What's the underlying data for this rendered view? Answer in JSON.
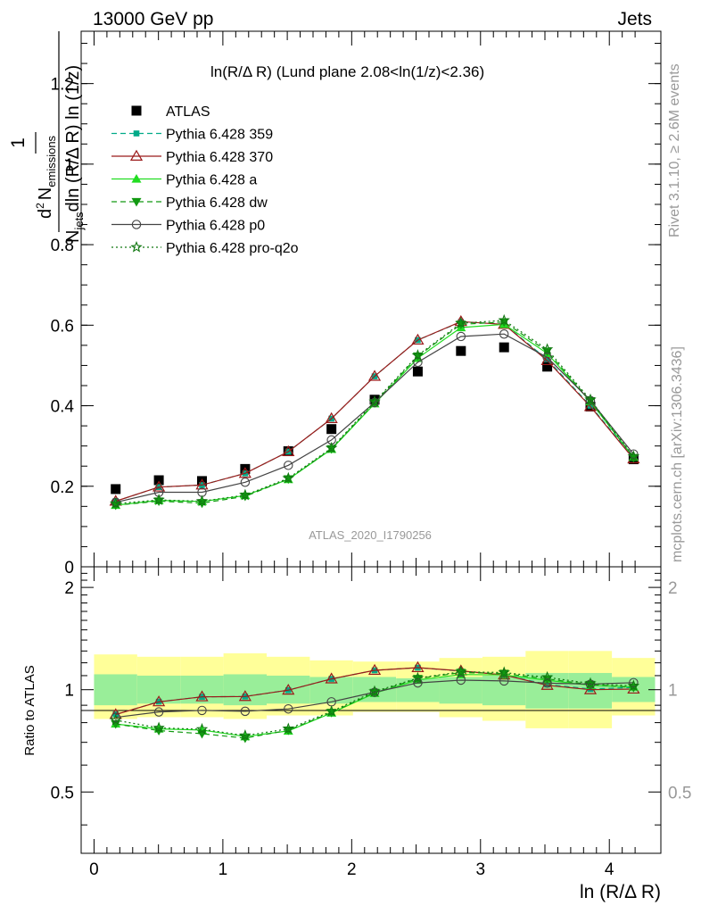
{
  "header": {
    "left": "13000 GeV pp",
    "right": "Jets"
  },
  "plot_title": "ln(R/Δ R) (Lund plane 2.08<ln(1/z)<2.36)",
  "watermark": "ATLAS_2020_I1790256",
  "side_text": {
    "rivet": "Rivet 3.1.10, ≥ 2.6M events",
    "mcplots": "mcplots.cern.ch [arXiv:1306.3436]"
  },
  "colors": {
    "atlas": "#000000",
    "p359": "#00aa88",
    "p370": "#9b1a1a",
    "pa": "#22dd22",
    "pdw": "#119911",
    "pp0": "#444444",
    "pq2o": "#117711",
    "band_inner": "#99ee99",
    "band_outer": "#ffff99"
  },
  "chart_data": [
    {
      "type": "line",
      "xlabel": "ln (R/Δ R)",
      "ylabel": "1/N_jets d²N_emissions / dln (R/Δ R) ln (1/z)",
      "ylabel_parts": {
        "one": "1",
        "num": "d",
        "num_sup": "2",
        "num_main": "N",
        "num_sub": "emissions",
        "den_N": "N",
        "den_sub": "jets",
        "den_rest": "dln (R/Δ R) ln (1/z)"
      },
      "xlim": [
        -0.1,
        4.4
      ],
      "ylim": [
        0,
        1.33
      ],
      "yticks": [
        0,
        0.2,
        0.4,
        0.6,
        0.8,
        1,
        1.2
      ],
      "ytick_labels": [
        "0",
        "0.2",
        "0.4",
        "0.6",
        "0.8",
        "1",
        "1.2"
      ],
      "x": [
        0.168,
        0.503,
        0.838,
        1.173,
        1.508,
        1.843,
        2.178,
        2.513,
        2.848,
        3.183,
        3.518,
        3.853,
        4.188
      ],
      "legend_position": "top-left",
      "series": [
        {
          "name": "ATLAS",
          "key": "atlas",
          "marker": "square",
          "style": "none",
          "values": [
            0.193,
            0.215,
            0.213,
            0.243,
            0.287,
            0.342,
            0.415,
            0.485,
            0.536,
            0.545,
            0.497,
            0.398,
            0.267
          ]
        },
        {
          "name": "Pythia 6.428 359",
          "key": "p359",
          "marker": "smallsquare",
          "style": "dashed",
          "values": [
            0.163,
            0.198,
            0.203,
            0.232,
            0.286,
            0.368,
            0.473,
            0.563,
            0.608,
            0.603,
            0.515,
            0.4,
            0.271
          ]
        },
        {
          "name": "Pythia 6.428 370",
          "key": "p370",
          "marker": "opentriangle",
          "style": "solid",
          "values": [
            0.163,
            0.198,
            0.203,
            0.232,
            0.286,
            0.368,
            0.473,
            0.563,
            0.609,
            0.602,
            0.512,
            0.398,
            0.268
          ]
        },
        {
          "name": "Pythia 6.428 a",
          "key": "pa",
          "marker": "triangle",
          "style": "solid",
          "values": [
            0.153,
            0.165,
            0.162,
            0.177,
            0.217,
            0.292,
            0.405,
            0.518,
            0.594,
            0.602,
            0.53,
            0.41,
            0.272
          ]
        },
        {
          "name": "Pythia 6.428 dw",
          "key": "pdw",
          "marker": "triangledown",
          "style": "dashed",
          "values": [
            0.153,
            0.163,
            0.158,
            0.175,
            0.218,
            0.293,
            0.407,
            0.523,
            0.602,
            0.608,
            0.535,
            0.412,
            0.271
          ]
        },
        {
          "name": "Pythia 6.428 p0",
          "key": "pp0",
          "marker": "opencircle",
          "style": "solid",
          "values": [
            0.16,
            0.185,
            0.185,
            0.21,
            0.252,
            0.315,
            0.408,
            0.508,
            0.572,
            0.578,
            0.52,
            0.413,
            0.28
          ]
        },
        {
          "name": "Pythia 6.428 pro-q2o",
          "key": "pq2o",
          "marker": "star",
          "style": "dotted",
          "values": [
            0.157,
            0.166,
            0.163,
            0.178,
            0.22,
            0.295,
            0.41,
            0.525,
            0.605,
            0.612,
            0.54,
            0.415,
            0.274
          ]
        }
      ]
    },
    {
      "type": "line",
      "ylabel": "Ratio to ATLAS",
      "xlabel": "ln (R/Δ R)",
      "xlim": [
        -0.1,
        4.4
      ],
      "ylim": [
        0.33,
        2.3
      ],
      "yticks": [
        0.5,
        1,
        2
      ],
      "ytick_labels": [
        "0.5",
        "1",
        "2"
      ],
      "xticks": [
        0,
        1,
        2,
        3,
        4
      ],
      "xtick_labels": [
        "0",
        "1",
        "2",
        "3",
        "4"
      ],
      "reference_line": 1,
      "band_edges": [
        0,
        0.335,
        0.67,
        1.005,
        1.34,
        1.675,
        2.01,
        2.345,
        2.68,
        3.015,
        3.35,
        3.685,
        4.02,
        4.355
      ],
      "band_inner": {
        "low": [
          0.9,
          0.91,
          0.91,
          0.9,
          0.91,
          0.91,
          0.92,
          0.92,
          0.91,
          0.9,
          0.88,
          0.88,
          0.92
        ],
        "high": [
          1.11,
          1.1,
          1.1,
          1.11,
          1.1,
          1.09,
          1.09,
          1.08,
          1.09,
          1.1,
          1.12,
          1.12,
          1.09
        ]
      },
      "band_outer": {
        "low": [
          0.82,
          0.83,
          0.83,
          0.82,
          0.84,
          0.84,
          0.86,
          0.86,
          0.83,
          0.81,
          0.77,
          0.77,
          0.84
        ],
        "high": [
          1.27,
          1.25,
          1.25,
          1.28,
          1.25,
          1.22,
          1.21,
          1.21,
          1.24,
          1.25,
          1.3,
          1.3,
          1.24
        ]
      },
      "series": [
        {
          "name": "Pythia 6.428 359",
          "key": "p359",
          "values": [
            0.846,
            0.922,
            0.953,
            0.955,
            0.997,
            1.076,
            1.14,
            1.161,
            1.134,
            1.106,
            1.036,
            1.005,
            1.015
          ]
        },
        {
          "name": "Pythia 6.428 370",
          "key": "p370",
          "values": [
            0.845,
            0.921,
            0.953,
            0.955,
            0.997,
            1.076,
            1.14,
            1.161,
            1.136,
            1.105,
            1.03,
            1.0,
            1.004
          ]
        },
        {
          "name": "Pythia 6.428 a",
          "key": "pa",
          "values": [
            0.793,
            0.767,
            0.761,
            0.728,
            0.756,
            0.854,
            0.976,
            1.068,
            1.108,
            1.105,
            1.066,
            1.03,
            1.019
          ]
        },
        {
          "name": "Pythia 6.428 dw",
          "key": "pdw",
          "values": [
            0.793,
            0.758,
            0.742,
            0.72,
            0.76,
            0.857,
            0.981,
            1.078,
            1.123,
            1.116,
            1.076,
            1.035,
            1.015
          ]
        },
        {
          "name": "Pythia 6.428 p0",
          "key": "pp0",
          "values": [
            0.829,
            0.86,
            0.869,
            0.864,
            0.878,
            0.921,
            0.983,
            1.047,
            1.067,
            1.061,
            1.046,
            1.038,
            1.049
          ]
        },
        {
          "name": "Pythia 6.428 pro-q2o",
          "key": "pq2o",
          "values": [
            0.813,
            0.772,
            0.765,
            0.733,
            0.767,
            0.863,
            0.988,
            1.082,
            1.129,
            1.123,
            1.087,
            1.043,
            1.026
          ]
        }
      ]
    }
  ]
}
